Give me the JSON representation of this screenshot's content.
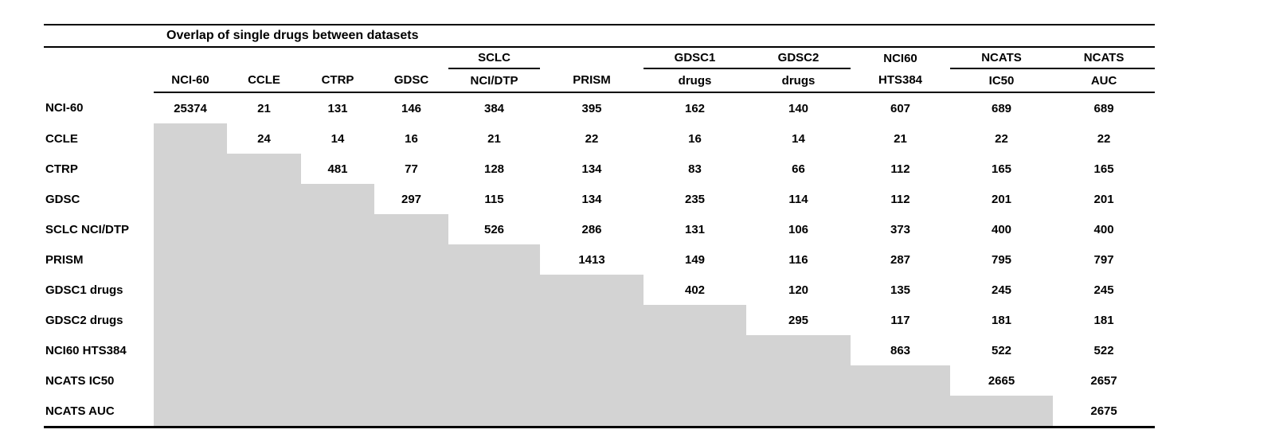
{
  "title": "Overlap of single drugs between datasets",
  "shade_color": "#d3d3d3",
  "line_color": "#000000",
  "columns": [
    {
      "top": "",
      "bottom": "NCI-60",
      "underline": false
    },
    {
      "top": "",
      "bottom": "CCLE",
      "underline": false
    },
    {
      "top": "",
      "bottom": "CTRP",
      "underline": false
    },
    {
      "top": "",
      "bottom": "GDSC",
      "underline": false
    },
    {
      "top": "SCLC",
      "bottom": "NCI/DTP",
      "underline": true
    },
    {
      "top": "",
      "bottom": "PRISM",
      "underline": false
    },
    {
      "top": "GDSC1",
      "bottom": "drugs",
      "underline": true
    },
    {
      "top": "GDSC2",
      "bottom": "drugs",
      "underline": true
    },
    {
      "top": "NCI60",
      "bottom": "HTS384",
      "underline": false
    },
    {
      "top": "NCATS",
      "bottom": "IC50",
      "underline": true
    },
    {
      "top": "NCATS",
      "bottom": "AUC",
      "underline": true
    }
  ],
  "rows": [
    {
      "label": "NCI-60",
      "values": [
        25374,
        21,
        131,
        146,
        384,
        395,
        162,
        140,
        607,
        689,
        689
      ]
    },
    {
      "label": "CCLE",
      "values": [
        null,
        24,
        14,
        16,
        21,
        22,
        16,
        14,
        21,
        22,
        22
      ]
    },
    {
      "label": "CTRP",
      "values": [
        null,
        null,
        481,
        77,
        128,
        134,
        83,
        66,
        112,
        165,
        165
      ]
    },
    {
      "label": "GDSC",
      "values": [
        null,
        null,
        null,
        297,
        115,
        134,
        235,
        114,
        112,
        201,
        201
      ]
    },
    {
      "label": "SCLC NCI/DTP",
      "values": [
        null,
        null,
        null,
        null,
        526,
        286,
        131,
        106,
        373,
        400,
        400
      ]
    },
    {
      "label": "PRISM",
      "values": [
        null,
        null,
        null,
        null,
        null,
        1413,
        149,
        116,
        287,
        795,
        797
      ]
    },
    {
      "label": "GDSC1 drugs",
      "values": [
        null,
        null,
        null,
        null,
        null,
        null,
        402,
        120,
        135,
        245,
        245
      ]
    },
    {
      "label": "GDSC2 drugs",
      "values": [
        null,
        null,
        null,
        null,
        null,
        null,
        null,
        295,
        117,
        181,
        181
      ]
    },
    {
      "label": "NCI60 HTS384",
      "values": [
        null,
        null,
        null,
        null,
        null,
        null,
        null,
        null,
        863,
        522,
        522
      ]
    },
    {
      "label": "NCATS IC50",
      "values": [
        null,
        null,
        null,
        null,
        null,
        null,
        null,
        null,
        null,
        2665,
        2657
      ]
    },
    {
      "label": "NCATS AUC",
      "values": [
        null,
        null,
        null,
        null,
        null,
        null,
        null,
        null,
        null,
        null,
        2675
      ]
    }
  ]
}
